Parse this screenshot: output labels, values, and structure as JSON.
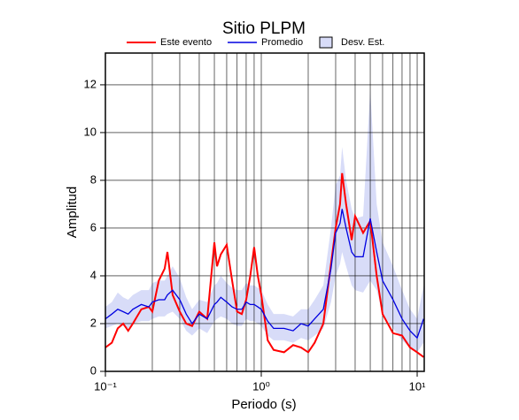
{
  "chart_data": {
    "type": "line",
    "title": "Sitio PLPM",
    "xlabel": "Periodo (s)",
    "ylabel": "Amplitud",
    "log_x": true,
    "grid": true,
    "xlim": [
      0.1,
      11.1
    ],
    "ylim": [
      0,
      13.33
    ],
    "xticks": [
      {
        "value": 0.1,
        "label": "10⁻¹"
      },
      {
        "value": 1,
        "label": "10⁰"
      },
      {
        "value": 10,
        "label": "10¹"
      }
    ],
    "yticks": [
      0,
      2,
      4,
      6,
      8,
      10,
      12
    ],
    "x": [
      0.1,
      0.11,
      0.12,
      0.13,
      0.14,
      0.15,
      0.17,
      0.19,
      0.2,
      0.22,
      0.24,
      0.25,
      0.27,
      0.3,
      0.33,
      0.36,
      0.4,
      0.45,
      0.5,
      0.52,
      0.55,
      0.6,
      0.65,
      0.7,
      0.75,
      0.8,
      0.85,
      0.9,
      0.95,
      1.0,
      1.1,
      1.2,
      1.4,
      1.6,
      1.8,
      2.0,
      2.2,
      2.5,
      2.8,
      3.0,
      3.2,
      3.3,
      3.5,
      3.8,
      4.0,
      4.5,
      5.0,
      5.5,
      6.0,
      7,
      8,
      9,
      10,
      11
    ],
    "series": [
      {
        "name": "Este evento",
        "color": "#ff0000",
        "values": [
          1.0,
          1.2,
          1.8,
          2.0,
          1.7,
          2.0,
          2.6,
          2.7,
          2.5,
          3.8,
          4.3,
          5.0,
          3.2,
          2.5,
          2.0,
          1.9,
          2.5,
          2.2,
          5.4,
          4.4,
          4.9,
          5.3,
          3.8,
          2.5,
          2.4,
          3.0,
          4.0,
          5.2,
          4.0,
          3.2,
          1.3,
          0.9,
          0.8,
          1.1,
          1.0,
          0.8,
          1.2,
          2.0,
          4.5,
          6.0,
          7.0,
          8.3,
          7.0,
          5.5,
          6.5,
          5.8,
          6.3,
          4.0,
          2.4,
          1.6,
          1.5,
          1.0,
          0.8,
          0.6
        ]
      },
      {
        "name": "Promedio",
        "color": "#0000e0",
        "values": [
          2.2,
          2.4,
          2.6,
          2.5,
          2.4,
          2.6,
          2.8,
          2.7,
          2.9,
          3.0,
          3.0,
          3.2,
          3.4,
          3.0,
          2.4,
          2.0,
          2.4,
          2.2,
          2.8,
          2.9,
          3.1,
          2.9,
          2.7,
          2.6,
          2.6,
          2.9,
          2.8,
          2.8,
          2.7,
          2.6,
          2.1,
          1.8,
          1.8,
          1.7,
          2.0,
          1.9,
          2.2,
          2.6,
          4.3,
          5.8,
          6.2,
          6.8,
          6.0,
          5.0,
          4.8,
          4.8,
          6.4,
          5.0,
          3.8,
          3.0,
          2.2,
          1.7,
          1.4,
          2.2
        ]
      },
      {
        "name": "Desv. Est.",
        "color": "#d8dcf8",
        "lower": [
          1.8,
          1.9,
          2.0,
          1.9,
          1.8,
          2.0,
          2.1,
          2.1,
          2.2,
          2.3,
          2.3,
          2.4,
          2.5,
          2.2,
          1.7,
          1.5,
          1.8,
          1.6,
          2.1,
          2.2,
          2.3,
          2.2,
          2.0,
          1.9,
          1.9,
          2.2,
          2.1,
          2.1,
          2.0,
          1.9,
          1.5,
          1.3,
          1.3,
          1.2,
          1.4,
          1.3,
          1.5,
          1.8,
          2.9,
          4.0,
          4.5,
          5.0,
          4.4,
          3.6,
          3.4,
          3.3,
          3.8,
          3.4,
          2.4,
          1.8,
          1.3,
          1.0,
          0.8,
          1.2
        ],
        "upper": [
          2.7,
          2.9,
          3.3,
          3.1,
          3.0,
          3.2,
          3.4,
          3.4,
          3.7,
          3.8,
          3.8,
          4.0,
          4.4,
          3.9,
          3.1,
          2.6,
          3.0,
          2.9,
          3.6,
          3.7,
          4.0,
          3.7,
          3.5,
          3.4,
          3.4,
          3.7,
          3.6,
          3.6,
          3.5,
          3.4,
          2.8,
          2.4,
          2.4,
          2.3,
          2.6,
          2.6,
          3.0,
          3.6,
          6.0,
          7.8,
          8.2,
          9.4,
          8.0,
          6.8,
          6.4,
          6.5,
          11.8,
          7.0,
          5.4,
          4.4,
          3.4,
          2.6,
          2.2,
          3.6
        ]
      }
    ]
  }
}
